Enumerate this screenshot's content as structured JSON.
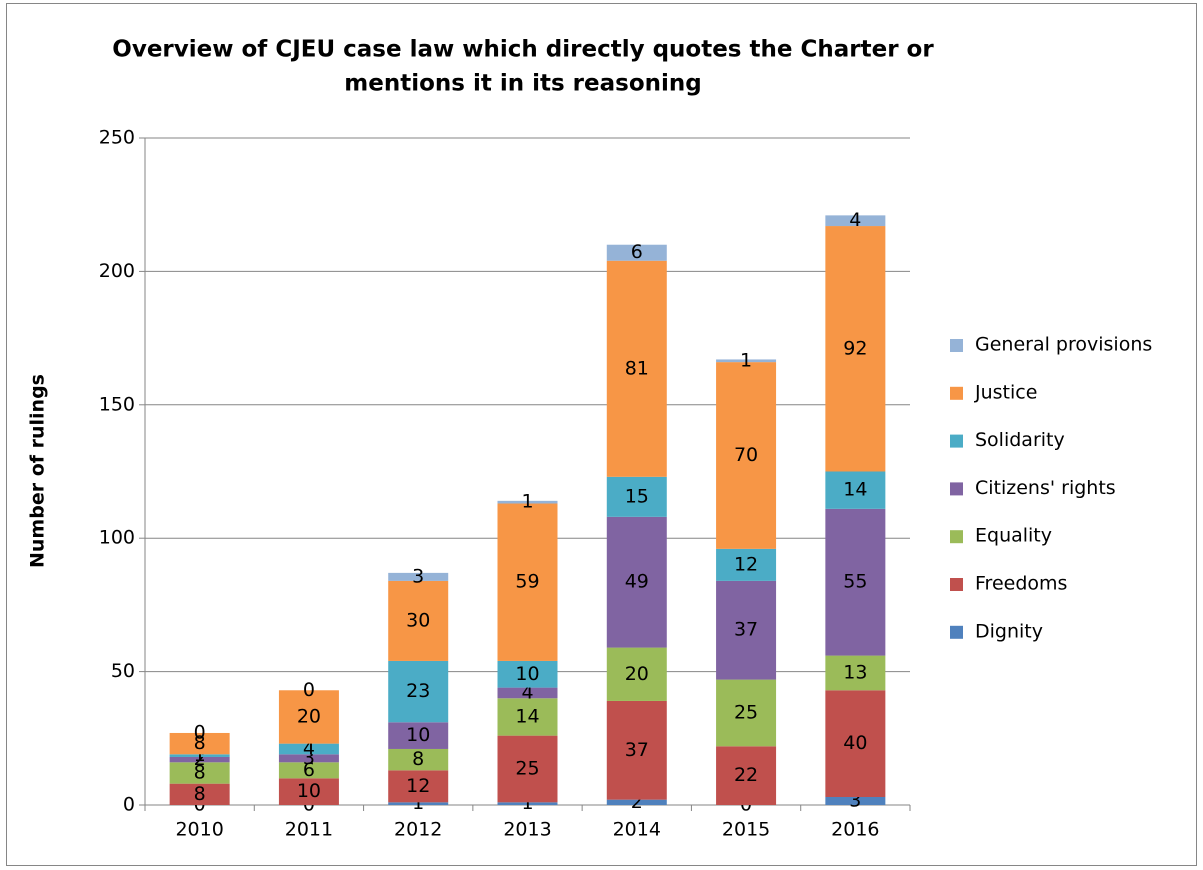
{
  "chart_data": {
    "type": "bar",
    "stacked": true,
    "title": [
      "Overview of CJEU case law which directly quotes the Charter or",
      "mentions it in its reasoning"
    ],
    "y_label": "Number of rulings",
    "categories": [
      "2010",
      "2011",
      "2012",
      "2013",
      "2014",
      "2015",
      "2016"
    ],
    "series": [
      {
        "name": "Dignity",
        "color": "#4f81bd",
        "values": [
          0,
          0,
          1,
          1,
          2,
          0,
          3
        ]
      },
      {
        "name": "Freedoms",
        "color": "#c0504d",
        "values": [
          8,
          10,
          12,
          25,
          37,
          22,
          40
        ]
      },
      {
        "name": "Equality",
        "color": "#9bbb59",
        "values": [
          8,
          6,
          8,
          14,
          20,
          25,
          13
        ]
      },
      {
        "name": "Citizens' rights",
        "color": "#8064a2",
        "values": [
          2,
          3,
          10,
          4,
          49,
          37,
          55
        ]
      },
      {
        "name": "Solidarity",
        "color": "#4bacc6",
        "values": [
          1,
          4,
          23,
          10,
          15,
          12,
          14
        ]
      },
      {
        "name": "Justice",
        "color": "#f79646",
        "values": [
          8,
          20,
          30,
          59,
          81,
          70,
          92
        ]
      },
      {
        "name": "General provisions",
        "color": "#95b3d7",
        "values": [
          0,
          0,
          3,
          1,
          6,
          1,
          4
        ]
      }
    ],
    "ylim": [
      0,
      250
    ],
    "yticks": [
      0,
      50,
      100,
      150,
      200,
      250
    ],
    "grid": true,
    "legend": "right"
  }
}
